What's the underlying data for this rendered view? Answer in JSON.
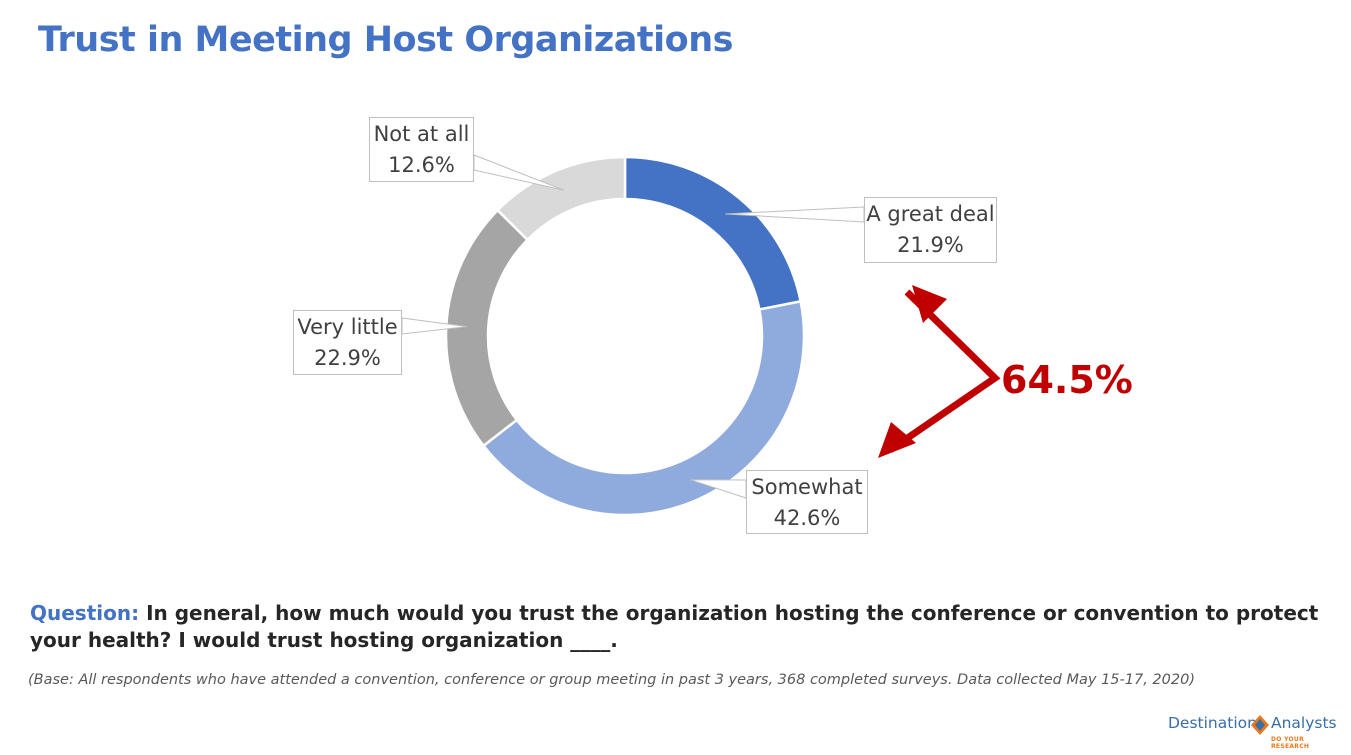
{
  "title": "Trust in Meeting Host Organizations",
  "chart_data": {
    "type": "pie",
    "donut": true,
    "slices": [
      {
        "label": "A great deal",
        "value": 21.9,
        "display": "21.9%",
        "color": "#4472c4"
      },
      {
        "label": "Somewhat",
        "value": 42.6,
        "display": "42.6%",
        "color": "#8faadc"
      },
      {
        "label": "Very little",
        "value": 22.9,
        "display": "22.9%",
        "color": "#a5a5a5"
      },
      {
        "label": "Not at all",
        "value": 12.6,
        "display": "12.6%",
        "color": "#d9d9d9"
      }
    ],
    "annotation": {
      "text": "64.5%",
      "color": "#c00000"
    }
  },
  "question": {
    "label": "Question:",
    "text": " In general, how much would you trust the organization hosting the conference or convention to protect your health? I  would trust hosting organization ____."
  },
  "base_note": "(Base: All respondents who have attended a convention, conference or group meeting in past 3 years, 368 completed surveys. Data collected May 15-17, 2020)",
  "logo": {
    "word1": "Destination",
    "word2": "Analysts",
    "tagline": "DO YOUR RESEARCH"
  }
}
